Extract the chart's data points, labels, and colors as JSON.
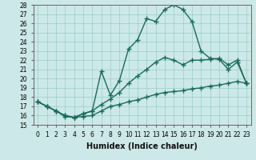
{
  "xlabel": "Humidex (Indice chaleur)",
  "bg_color": "#cce8e8",
  "line_color": "#1a6b5a",
  "grid_color": "#99cccc",
  "xlim": [
    -0.5,
    23.5
  ],
  "ylim": [
    15,
    28
  ],
  "xticks": [
    0,
    1,
    2,
    3,
    4,
    5,
    6,
    7,
    8,
    9,
    10,
    11,
    12,
    13,
    14,
    15,
    16,
    17,
    18,
    19,
    20,
    21,
    22,
    23
  ],
  "yticks": [
    15,
    16,
    17,
    18,
    19,
    20,
    21,
    22,
    23,
    24,
    25,
    26,
    27,
    28
  ],
  "line1_x": [
    0,
    1,
    2,
    3,
    4,
    5,
    6,
    7,
    8,
    9,
    10,
    11,
    12,
    13,
    14,
    15,
    16,
    17,
    18,
    19,
    20,
    21,
    22,
    23
  ],
  "line1_y": [
    17.5,
    17.0,
    16.5,
    15.9,
    15.8,
    16.2,
    16.5,
    20.8,
    18.2,
    19.8,
    23.2,
    24.2,
    26.5,
    26.2,
    27.5,
    28.0,
    27.5,
    26.2,
    23.0,
    22.2,
    22.1,
    21.0,
    21.8,
    19.5
  ],
  "line2_x": [
    0,
    1,
    2,
    3,
    4,
    5,
    6,
    7,
    8,
    9,
    10,
    11,
    12,
    13,
    14,
    15,
    16,
    17,
    18,
    19,
    20,
    21,
    22,
    23
  ],
  "line2_y": [
    17.5,
    17.0,
    16.5,
    16.0,
    15.8,
    16.2,
    16.5,
    17.2,
    17.8,
    18.5,
    19.5,
    20.3,
    21.0,
    21.8,
    22.3,
    22.0,
    21.5,
    22.0,
    22.0,
    22.1,
    22.2,
    21.5,
    22.0,
    19.5
  ],
  "line3_x": [
    0,
    1,
    2,
    3,
    4,
    5,
    6,
    7,
    8,
    9,
    10,
    11,
    12,
    13,
    14,
    15,
    16,
    17,
    18,
    19,
    20,
    21,
    22,
    23
  ],
  "line3_y": [
    17.5,
    17.0,
    16.5,
    16.0,
    15.8,
    15.9,
    16.0,
    16.5,
    17.0,
    17.2,
    17.5,
    17.7,
    18.0,
    18.3,
    18.5,
    18.6,
    18.7,
    18.9,
    19.0,
    19.2,
    19.3,
    19.5,
    19.7,
    19.5
  ],
  "marker": "+",
  "markersize": 4,
  "linewidth": 1.0,
  "tick_fontsize": 5.5,
  "xlabel_fontsize": 7
}
